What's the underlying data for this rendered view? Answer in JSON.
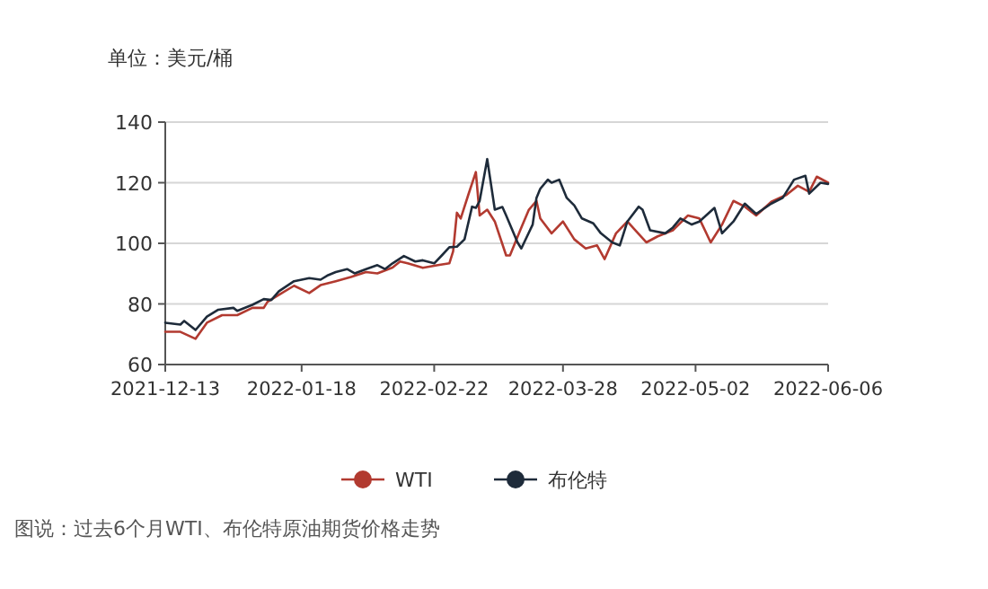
{
  "chart_data": {
    "type": "line",
    "ylabel": "单位：美元/桶",
    "annotations": [
      "图说：过去6个月WTI、布伦特原油期货价格走势"
    ],
    "xlim": [
      "2021-12-13",
      "2022-06-06"
    ],
    "xticks": [
      "2021-12-13",
      "2022-01-18",
      "2022-02-22",
      "2022-03-28",
      "2022-05-02",
      "2022-06-06"
    ],
    "ylim": [
      60,
      140
    ],
    "yticks": [
      60,
      80,
      100,
      120,
      140
    ],
    "grid": "y",
    "legend": "bottom",
    "marker": "none",
    "line_style": "solid",
    "series": [
      {
        "name": "WTI",
        "color": "#b23a30",
        "x": [
          "2021-12-13",
          "2021-12-17",
          "2021-12-21",
          "2021-12-24",
          "2021-12-28",
          "2022-01-01",
          "2022-01-05",
          "2022-01-08",
          "2022-01-09",
          "2022-01-12",
          "2022-01-16",
          "2022-01-20",
          "2022-01-23",
          "2022-01-27",
          "2022-01-31",
          "2022-02-04",
          "2022-02-07",
          "2022-02-11",
          "2022-02-13",
          "2022-02-15",
          "2022-02-19",
          "2022-02-23",
          "2022-02-26",
          "2022-02-27",
          "2022-02-28",
          "2022-03-01",
          "2022-03-03",
          "2022-03-05",
          "2022-03-06",
          "2022-03-08",
          "2022-03-10",
          "2022-03-13",
          "2022-03-14",
          "2022-03-17",
          "2022-03-19",
          "2022-03-21",
          "2022-03-22",
          "2022-03-25",
          "2022-03-28",
          "2022-03-31",
          "2022-04-03",
          "2022-04-06",
          "2022-04-08",
          "2022-04-11",
          "2022-04-14",
          "2022-04-19",
          "2022-04-22",
          "2022-04-26",
          "2022-04-30",
          "2022-05-03",
          "2022-05-06",
          "2022-05-09",
          "2022-05-12",
          "2022-05-15",
          "2022-05-18",
          "2022-05-22",
          "2022-05-26",
          "2022-05-29",
          "2022-06-01",
          "2022-06-03",
          "2022-06-06"
        ],
        "values": [
          70.8,
          70.8,
          68.5,
          73.8,
          76.3,
          76.3,
          78.7,
          78.7,
          80.7,
          83,
          86,
          83.6,
          86.2,
          87.5,
          88.9,
          90.5,
          90.1,
          92,
          94,
          93.4,
          91.9,
          92.8,
          93.4,
          97.4,
          110.1,
          108.2,
          116,
          123.5,
          109.2,
          111.1,
          107.2,
          96,
          96,
          105.2,
          111.1,
          114,
          108.2,
          103.3,
          107.2,
          101.3,
          98.3,
          99.3,
          94.8,
          103.3,
          107.2,
          100.3,
          102.3,
          104.3,
          109.2,
          108.2,
          100.3,
          106.2,
          114,
          112.1,
          109.2,
          113.7,
          116,
          119,
          117,
          122,
          120
        ]
      },
      {
        "name": "布伦特",
        "color": "#1e2b3a",
        "x": [
          "2021-12-13",
          "2021-12-17",
          "2021-12-18",
          "2021-12-21",
          "2021-12-24",
          "2021-12-27",
          "2021-12-31",
          "2022-01-01",
          "2022-01-05",
          "2022-01-08",
          "2022-01-10",
          "2022-01-12",
          "2022-01-16",
          "2022-01-20",
          "2022-01-23",
          "2022-01-25",
          "2022-01-27",
          "2022-01-30",
          "2022-02-01",
          "2022-02-04",
          "2022-02-07",
          "2022-02-09",
          "2022-02-11",
          "2022-02-14",
          "2022-02-17",
          "2022-02-19",
          "2022-02-22",
          "2022-02-24",
          "2022-02-26",
          "2022-02-28",
          "2022-03-02",
          "2022-03-04",
          "2022-03-05",
          "2022-03-06",
          "2022-03-08",
          "2022-03-10",
          "2022-03-12",
          "2022-03-13",
          "2022-03-16",
          "2022-03-17",
          "2022-03-20",
          "2022-03-21",
          "2022-03-22",
          "2022-03-24",
          "2022-03-25",
          "2022-03-27",
          "2022-03-29",
          "2022-03-31",
          "2022-04-02",
          "2022-04-05",
          "2022-04-07",
          "2022-04-10",
          "2022-04-12",
          "2022-04-14",
          "2022-04-17",
          "2022-04-18",
          "2022-04-20",
          "2022-04-24",
          "2022-04-26",
          "2022-04-28",
          "2022-05-01",
          "2022-05-03",
          "2022-05-07",
          "2022-05-09",
          "2022-05-12",
          "2022-05-15",
          "2022-05-18",
          "2022-05-22",
          "2022-05-25",
          "2022-05-28",
          "2022-05-31",
          "2022-06-01",
          "2022-06-04",
          "2022-06-06"
        ],
        "values": [
          73.8,
          73.2,
          74.4,
          71.4,
          75.8,
          78.1,
          78.7,
          77.7,
          79.7,
          81.6,
          81.3,
          84.2,
          87.5,
          88.5,
          88,
          89.5,
          90.5,
          91.5,
          90.1,
          91.5,
          92.8,
          91.5,
          93.4,
          95.8,
          94,
          94.4,
          93.4,
          96,
          98.7,
          98.9,
          101.3,
          112.1,
          111.7,
          114,
          127.8,
          111.1,
          112,
          109.2,
          100.3,
          98.3,
          106.2,
          115,
          118,
          121,
          120,
          121,
          115,
          112.5,
          108.2,
          106.6,
          103.3,
          100.3,
          99.3,
          107.2,
          112.1,
          111.1,
          104.3,
          103.3,
          105.2,
          108.2,
          106.2,
          107.2,
          111.7,
          103.3,
          107.2,
          113.1,
          109.7,
          113.1,
          115,
          121,
          122.3,
          116.4,
          120,
          119.6
        ]
      }
    ]
  }
}
